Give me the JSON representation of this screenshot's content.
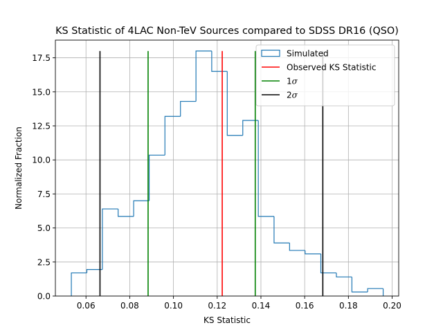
{
  "chart_data": {
    "type": "histogram",
    "title": "KS Statistic of 4LAC Non-TeV Sources compared to SDSS DR16 (QSO)",
    "xlabel": "KS Statistic",
    "ylabel": "Normalized Fraction",
    "xlim": [
      0.046,
      0.203
    ],
    "ylim": [
      0,
      18.8
    ],
    "xticks": [
      0.06,
      0.08,
      0.1,
      0.12,
      0.14,
      0.16,
      0.18,
      0.2
    ],
    "xtick_labels": [
      "0.06",
      "0.08",
      "0.10",
      "0.12",
      "0.14",
      "0.16",
      "0.18",
      "0.20"
    ],
    "yticks": [
      0.0,
      2.5,
      5.0,
      7.5,
      10.0,
      12.5,
      15.0,
      17.5
    ],
    "ytick_labels": [
      "0.0",
      "2.5",
      "5.0",
      "7.5",
      "10.0",
      "12.5",
      "15.0",
      "17.5"
    ],
    "grid": true,
    "legend_position": "top-right",
    "histogram": {
      "name": "Simulated",
      "color": "#1f77b4",
      "bin_edges": [
        0.0533,
        0.0604,
        0.0675,
        0.0747,
        0.0818,
        0.0889,
        0.0961,
        0.1032,
        0.1103,
        0.1175,
        0.1246,
        0.1317,
        0.1388,
        0.146,
        0.1531,
        0.1602,
        0.1674,
        0.1745,
        0.1816,
        0.1888,
        0.1959
      ],
      "values": [
        1.7,
        1.95,
        6.4,
        5.85,
        7.0,
        10.35,
        13.2,
        14.3,
        18.0,
        16.5,
        11.8,
        12.9,
        5.85,
        3.9,
        3.35,
        3.1,
        1.7,
        1.4,
        0.3,
        0.55
      ]
    },
    "vlines": [
      {
        "name": "Observed KS Statistic",
        "x": 0.1223,
        "ymax": 18.0,
        "color": "#ff0000"
      },
      {
        "name": "1σ",
        "x": 0.0884,
        "ymax": 18.0,
        "color": "#008000"
      },
      {
        "name": "1σ",
        "x": 0.1374,
        "ymax": 18.0,
        "color": "#008000"
      },
      {
        "name": "2σ",
        "x": 0.0664,
        "ymax": 18.0,
        "color": "#000000"
      },
      {
        "name": "2σ",
        "x": 0.1683,
        "ymax": 18.0,
        "color": "#000000"
      }
    ],
    "legend": [
      {
        "label": "Simulated",
        "kind": "patch",
        "color": "#1f77b4"
      },
      {
        "label": "Observed KS Statistic",
        "kind": "line",
        "color": "#ff0000"
      },
      {
        "label": "1σ",
        "kind": "line",
        "color": "#008000",
        "symbol": "σ",
        "prefix": "1"
      },
      {
        "label": "2σ",
        "kind": "line",
        "color": "#000000",
        "symbol": "σ",
        "prefix": "2"
      }
    ]
  }
}
